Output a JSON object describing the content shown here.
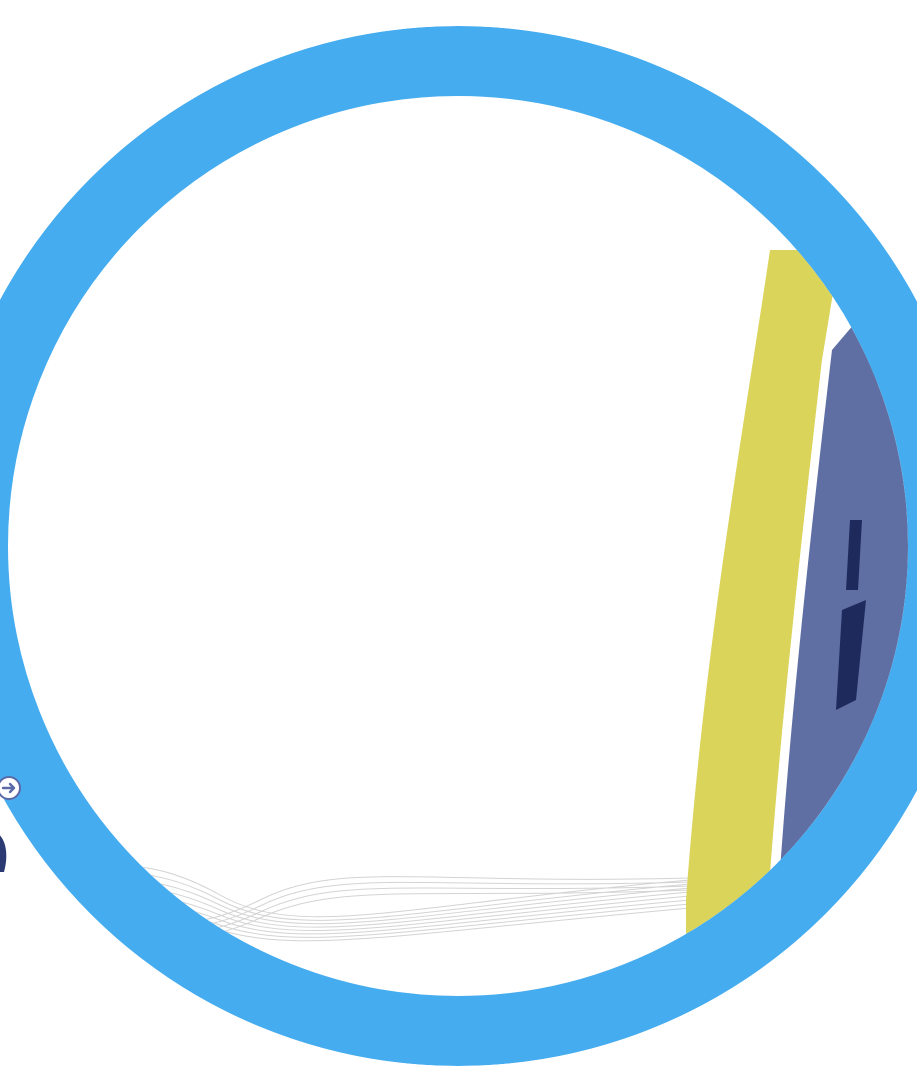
{
  "colors": {
    "ring": "#45acf0",
    "background": "#ffffff",
    "yellow_band": "#dbd45a",
    "navy_band": "#5f6fa3",
    "dark_navy": "#1f2a5c",
    "arrow": "#5a6aa8",
    "wave_lines": "#c8c8c8"
  },
  "icons": {
    "nav_arrow": "arrow-right-circle-icon",
    "ring": "circular-frame"
  }
}
